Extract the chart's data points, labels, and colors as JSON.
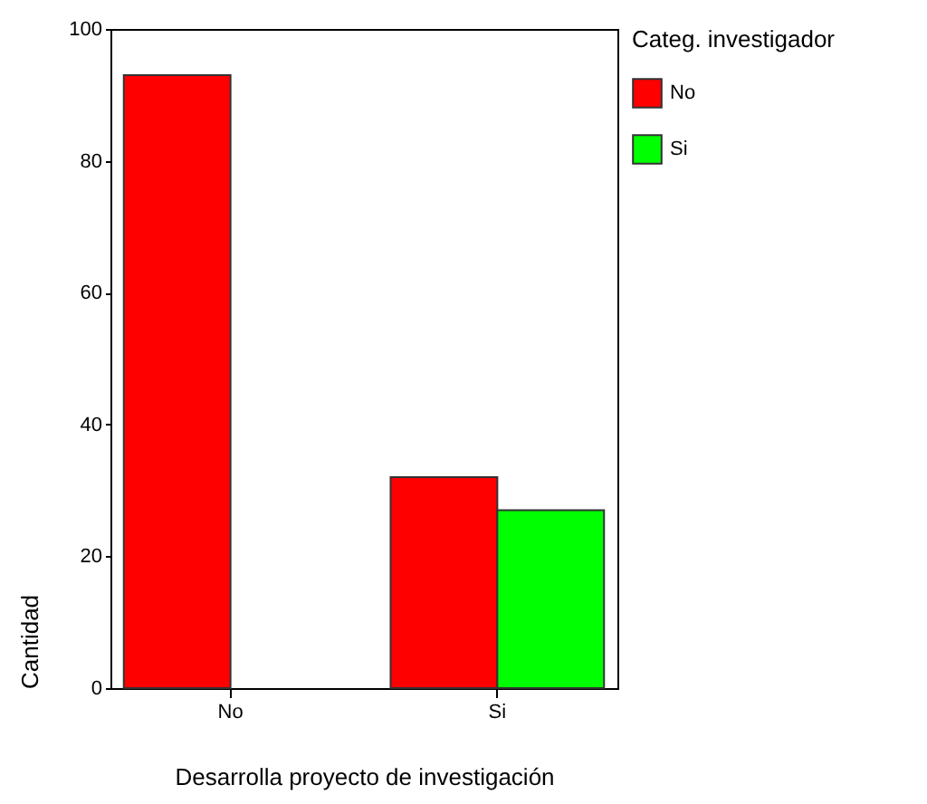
{
  "chart_data": {
    "type": "bar",
    "xlabel": "Desarrolla proyecto de investigación",
    "ylabel": "Cantidad",
    "legend_title": "Categ. investigador",
    "categories": [
      "No",
      "Si"
    ],
    "series": [
      {
        "name": "No",
        "color": "#ff0000",
        "values": [
          93,
          32
        ]
      },
      {
        "name": "Si",
        "color": "#00ff00",
        "values": [
          null,
          27
        ]
      }
    ],
    "ylim": [
      0,
      100
    ],
    "yticks": [
      0,
      20,
      40,
      60,
      80,
      100
    ],
    "grid": false,
    "legend": "right"
  }
}
